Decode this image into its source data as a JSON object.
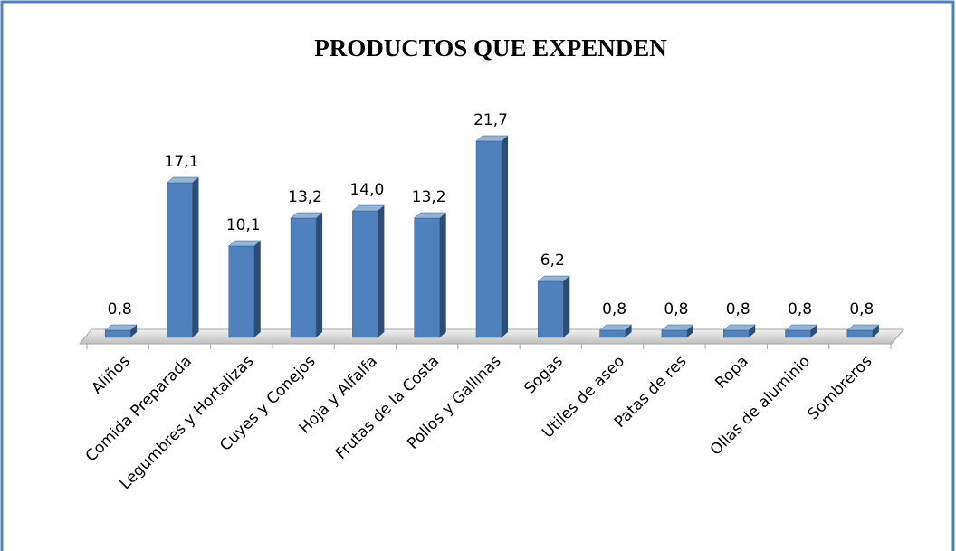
{
  "chart_data": {
    "type": "bar3d",
    "title": "PRODUCTOS QUE EXPENDEN",
    "categories": [
      "Aliños",
      "Comida Preparada",
      "Legumbres y Hortalizas",
      "Cuyes y Conejos",
      "Hoja y Alfalfa",
      "Frutas de la Costa",
      "Pollos y Gallinas",
      "Sogas",
      "Utiles de aseo",
      "Patas de res",
      "Ropa",
      "Ollas de aluminio",
      "Sombreros"
    ],
    "values": [
      0.8,
      17.1,
      10.1,
      13.2,
      14.0,
      13.2,
      21.7,
      6.2,
      0.8,
      0.8,
      0.8,
      0.8,
      0.8
    ],
    "value_labels": [
      "0,8",
      "17,1",
      "10,1",
      "13,2",
      "14,0",
      "13,2",
      "21,7",
      "6,2",
      "0,8",
      "0,8",
      "0,8",
      "0,8",
      "0,8"
    ],
    "color": "#4f81bd"
  }
}
